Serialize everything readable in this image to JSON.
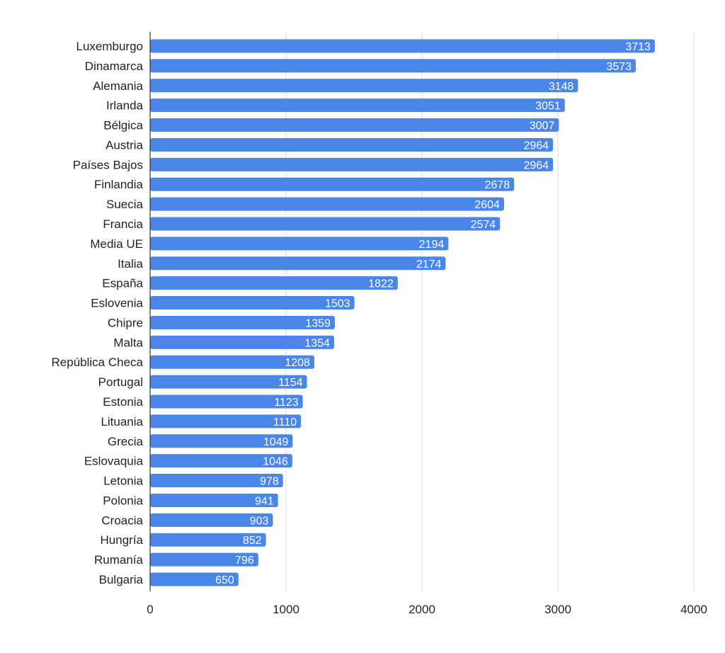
{
  "chart_data": {
    "type": "bar",
    "orientation": "horizontal",
    "categories": [
      "Luxemburgo",
      "Dinamarca",
      "Alemania",
      "Irlanda",
      "Bélgica",
      "Austria",
      "Países Bajos",
      "Finlandia",
      "Suecia",
      "Francia",
      "Media UE",
      "Italia",
      "España",
      "Eslovenia",
      "Chipre",
      "Malta",
      "República Checa",
      "Portugal",
      "Estonia",
      "Lituania",
      "Grecia",
      "Eslovaquia",
      "Letonia",
      "Polonia",
      "Croacia",
      "Hungría",
      "Rumanía",
      "Bulgaria"
    ],
    "values": [
      3713,
      3573,
      3148,
      3051,
      3007,
      2964,
      2964,
      2678,
      2604,
      2574,
      2194,
      2174,
      1822,
      1503,
      1359,
      1354,
      1208,
      1154,
      1123,
      1110,
      1049,
      1046,
      978,
      941,
      903,
      852,
      796,
      650
    ],
    "xlim": [
      0,
      4000
    ],
    "xticks": [
      0,
      1000,
      2000,
      3000,
      4000
    ],
    "grid": true,
    "data_labels": true,
    "title": "",
    "xlabel": "",
    "ylabel": "",
    "bar_color": "#4a86e8"
  }
}
